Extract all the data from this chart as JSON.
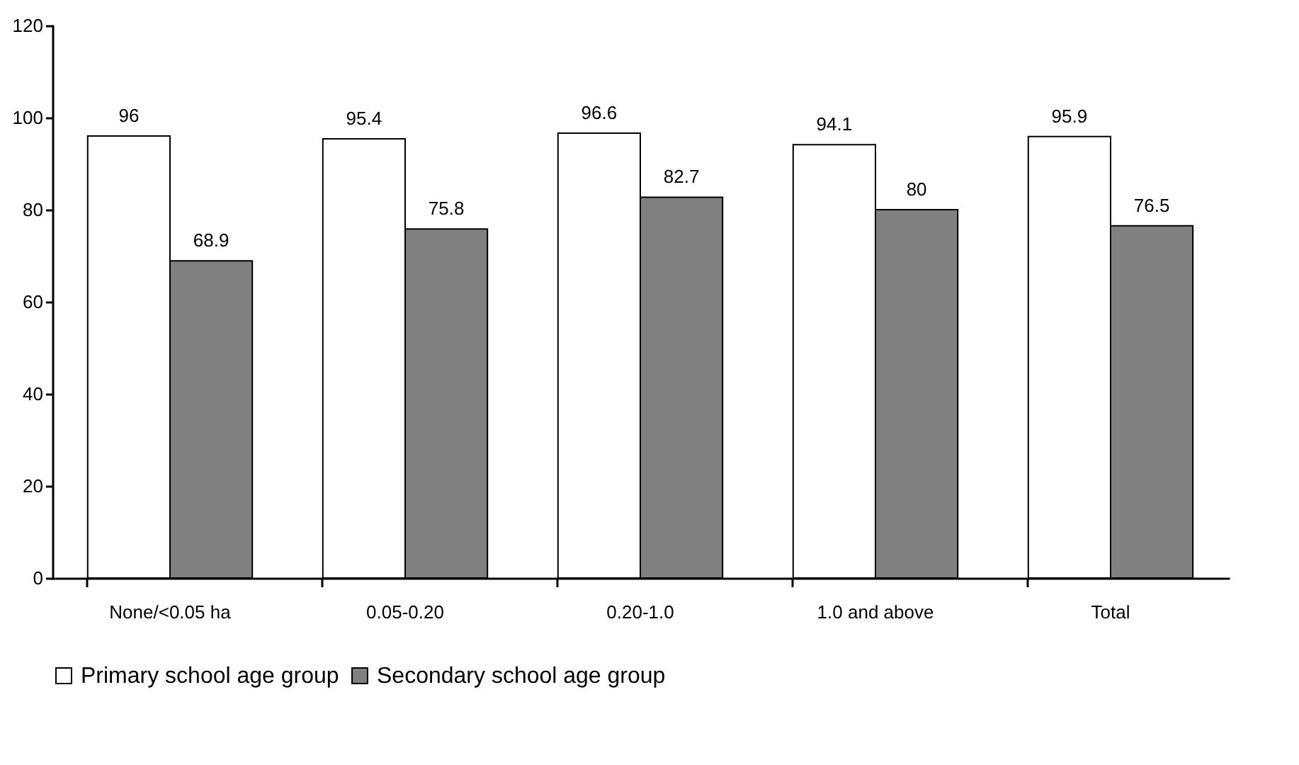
{
  "chart_data": {
    "type": "bar",
    "categories": [
      "None/<0.05 ha",
      "0.05-0.20",
      "0.20-1.0",
      "1.0 and above",
      "Total"
    ],
    "series": [
      {
        "name": "Primary school age group",
        "color": "#ffffff",
        "values": [
          96,
          95.4,
          96.6,
          94.1,
          95.9
        ]
      },
      {
        "name": "Secondary school age group",
        "color": "#808080",
        "values": [
          68.9,
          75.8,
          82.7,
          80,
          76.5
        ]
      }
    ],
    "ylim": [
      0,
      120
    ],
    "yticks": [
      0,
      20,
      40,
      60,
      80,
      100,
      120
    ],
    "data_labels": true,
    "legend": "bottom",
    "grid": false
  }
}
